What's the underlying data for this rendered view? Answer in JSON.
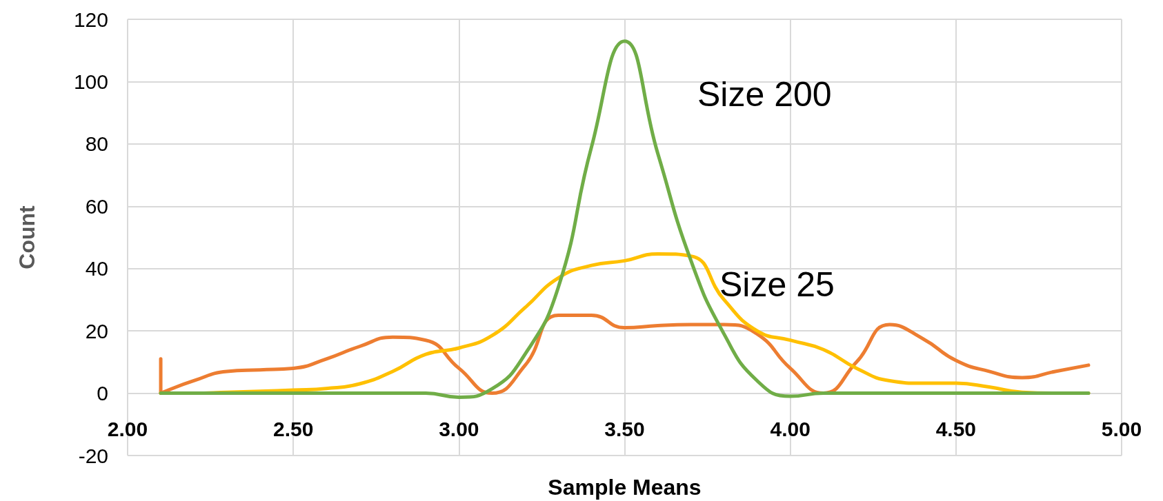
{
  "chart_data": {
    "type": "line",
    "xlabel": "Sample Means",
    "ylabel": "Count",
    "xlim": [
      2.0,
      5.0
    ],
    "xticks": [
      {
        "value": 2.0,
        "label": "2.00"
      },
      {
        "value": 2.5,
        "label": "2.50"
      },
      {
        "value": 3.0,
        "label": "3.00"
      },
      {
        "value": 3.5,
        "label": "3.50"
      },
      {
        "value": 4.0,
        "label": "4.00"
      },
      {
        "value": 4.5,
        "label": "4.50"
      },
      {
        "value": 5.0,
        "label": "5.00"
      }
    ],
    "ylim": [
      -20,
      120
    ],
    "yticks": [
      -20,
      0,
      20,
      40,
      60,
      80,
      100,
      120
    ],
    "grid": true,
    "marker": "none",
    "line_style": "solid",
    "series": [
      {
        "color": "#ed7d31",
        "x": [
          2.1,
          2.1,
          2.2,
          2.3,
          2.4,
          2.5,
          2.6,
          2.7,
          2.8,
          2.9,
          3.0,
          3.1,
          3.2,
          3.3,
          3.4,
          3.5,
          3.6,
          3.7,
          3.8,
          3.9,
          4.0,
          4.1,
          4.2,
          4.3,
          4.4,
          4.5,
          4.6,
          4.7,
          4.8,
          4.9
        ],
        "values": [
          11,
          0,
          4,
          7,
          7.5,
          8,
          11,
          15,
          18,
          17,
          8,
          0,
          9,
          25,
          25,
          21,
          21.7,
          22,
          22,
          19,
          8,
          0,
          10,
          22,
          17.5,
          10.5,
          7,
          5,
          7,
          9
        ]
      },
      {
        "color": "#ffc000",
        "x": [
          2.1,
          2.2,
          2.3,
          2.4,
          2.5,
          2.6,
          2.7,
          2.8,
          2.9,
          3.0,
          3.1,
          3.2,
          3.3,
          3.4,
          3.5,
          3.6,
          3.7,
          3.8,
          3.9,
          4.0,
          4.1,
          4.2,
          4.3,
          4.4,
          4.5,
          4.6,
          4.7,
          4.8,
          4.9
        ],
        "values": [
          0,
          0,
          0.3,
          0.6,
          1,
          1.5,
          3,
          7,
          12.5,
          14.5,
          18.5,
          27.5,
          37,
          41,
          42.5,
          44.7,
          44,
          30,
          20,
          17,
          14,
          8,
          4,
          3.2,
          3.2,
          2,
          0.3,
          0,
          0
        ]
      },
      {
        "color": "#70ad47",
        "x": [
          2.1,
          2.2,
          2.3,
          2.4,
          2.5,
          2.6,
          2.7,
          2.8,
          2.9,
          3.0,
          3.1,
          3.2,
          3.3,
          3.4,
          3.5,
          3.6,
          3.7,
          3.8,
          3.9,
          4.0,
          4.1,
          4.2,
          4.3,
          4.4,
          4.5,
          4.6,
          4.7,
          4.8,
          4.9
        ],
        "values": [
          0,
          0,
          0,
          0,
          0,
          0,
          0,
          0,
          0,
          -1.3,
          1.4,
          12.6,
          34,
          79,
          113,
          77,
          42.6,
          19,
          4,
          -1,
          0,
          0,
          0,
          0,
          0,
          0,
          0,
          0,
          0
        ]
      }
    ],
    "annotations": [
      "Size 200",
      "Size 25"
    ]
  }
}
